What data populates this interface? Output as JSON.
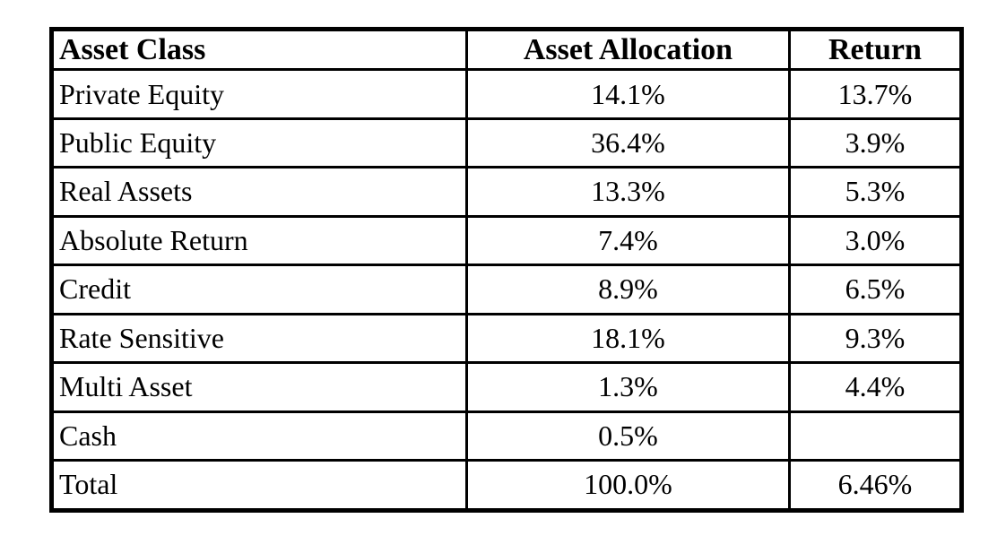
{
  "table": {
    "columns": {
      "asset_class": "Asset Class",
      "allocation": "Asset Allocation",
      "return": "Return"
    },
    "rows": [
      {
        "asset_class": "Private Equity",
        "allocation": "14.1%",
        "return": "13.7%"
      },
      {
        "asset_class": "Public Equity",
        "allocation": "36.4%",
        "return": "3.9%"
      },
      {
        "asset_class": "Real Assets",
        "allocation": "13.3%",
        "return": "5.3%"
      },
      {
        "asset_class": "Absolute Return",
        "allocation": "7.4%",
        "return": "3.0%"
      },
      {
        "asset_class": "Credit",
        "allocation": "8.9%",
        "return": "6.5%"
      },
      {
        "asset_class": "Rate Sensitive",
        "allocation": "18.1%",
        "return": "9.3%"
      },
      {
        "asset_class": "Multi Asset",
        "allocation": "1.3%",
        "return": "4.4%"
      },
      {
        "asset_class": "Cash",
        "allocation": "0.5%",
        "return": ""
      },
      {
        "asset_class": "Total",
        "allocation": "100.0%",
        "return": "6.46%"
      }
    ],
    "border_color": "#000000",
    "background_color": "#ffffff",
    "text_color": "#000000"
  }
}
